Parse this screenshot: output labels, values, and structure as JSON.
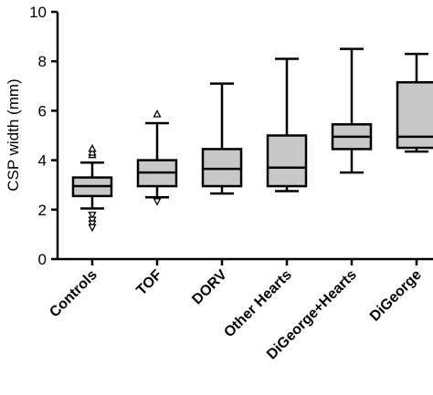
{
  "chart_data": {
    "type": "box",
    "ylabel": "CSP width (mm)",
    "ylim": [
      0,
      10
    ],
    "yticks": [
      0,
      2,
      4,
      6,
      8,
      10
    ],
    "colors": {
      "box_fill": "#c8c8c8",
      "stroke": "#000000"
    },
    "categories": [
      "Controls",
      "TOF",
      "DORV",
      "Other Hearts",
      "DiGeorge+Hearts",
      "DiGeorge"
    ],
    "boxes": [
      {
        "category": "Controls",
        "min": 2.05,
        "q1": 2.55,
        "median": 2.95,
        "q3": 3.3,
        "max": 3.9,
        "outliers_high": [
          4.2,
          4.3,
          4.45
        ],
        "outliers_low": [
          1.8,
          1.6,
          1.45,
          1.3
        ]
      },
      {
        "category": "TOF",
        "min": 2.5,
        "q1": 2.95,
        "median": 3.5,
        "q3": 4.0,
        "max": 5.5,
        "outliers_high": [
          5.85
        ],
        "outliers_low": [
          2.35
        ]
      },
      {
        "category": "DORV",
        "min": 2.65,
        "q1": 2.95,
        "median": 3.65,
        "q3": 4.45,
        "max": 7.1,
        "outliers_high": [],
        "outliers_low": []
      },
      {
        "category": "Other Hearts",
        "min": 2.75,
        "q1": 2.95,
        "median": 3.7,
        "q3": 5.0,
        "max": 8.1,
        "outliers_high": [],
        "outliers_low": []
      },
      {
        "category": "DiGeorge+Hearts",
        "min": 3.5,
        "q1": 4.45,
        "median": 4.95,
        "q3": 5.45,
        "max": 8.5,
        "outliers_high": [],
        "outliers_low": []
      },
      {
        "category": "DiGeorge",
        "min": 4.35,
        "q1": 4.5,
        "median": 4.95,
        "q3": 7.15,
        "max": 8.3,
        "outliers_high": [],
        "outliers_low": []
      }
    ]
  }
}
